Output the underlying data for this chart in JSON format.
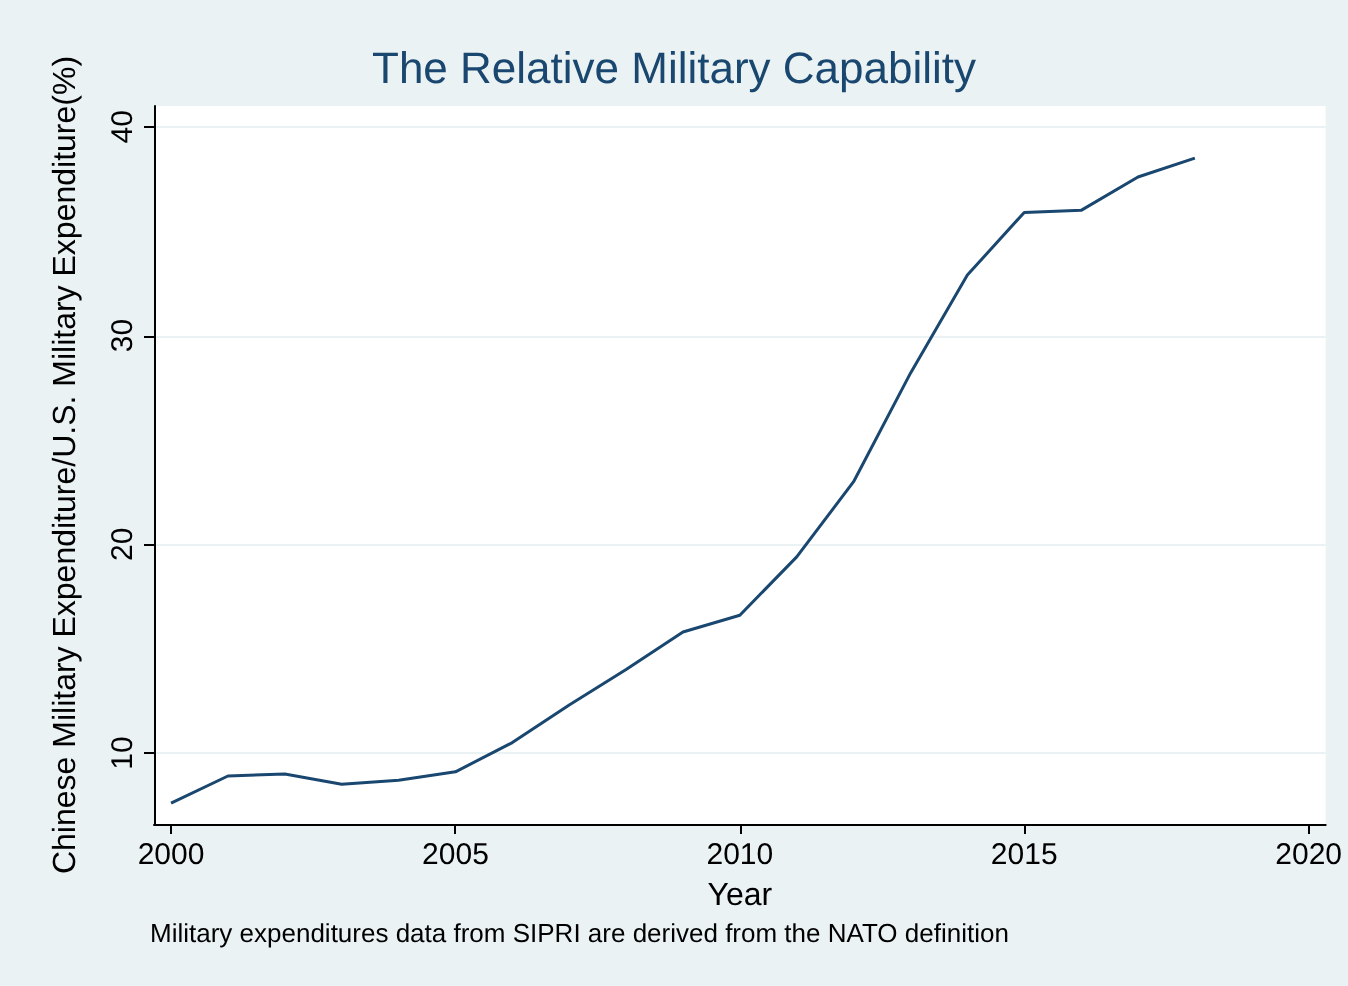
{
  "chart_data": {
    "type": "line",
    "title": "The Relative Military Capability",
    "xlabel": "Year",
    "ylabel": "Chinese Military Expenditure/U.S. Military Expenditure(%)",
    "annotations": [
      "Military expenditures data from SIPRI are derived from the NATO definition"
    ],
    "x": [
      2000,
      2001,
      2002,
      2003,
      2004,
      2005,
      2006,
      2007,
      2008,
      2009,
      2010,
      2011,
      2012,
      2013,
      2014,
      2015,
      2016,
      2017,
      2018
    ],
    "series": [
      {
        "color": "#1a476f",
        "values": [
          7.6,
          8.9,
          9.0,
          8.5,
          8.7,
          9.1,
          10.5,
          12.3,
          14.0,
          15.8,
          16.6,
          19.4,
          23.0,
          28.2,
          32.9,
          35.9,
          36.0,
          37.6,
          38.5
        ]
      }
    ],
    "xlim": [
      1999.7,
      2020.3
    ],
    "xticks": [
      2000,
      2005,
      2010,
      2015,
      2020
    ],
    "ylim": [
      6.6,
      41
    ],
    "yticks": [
      10,
      20,
      30,
      40
    ],
    "grid": "y",
    "marker": "none",
    "line_style": "solid"
  }
}
